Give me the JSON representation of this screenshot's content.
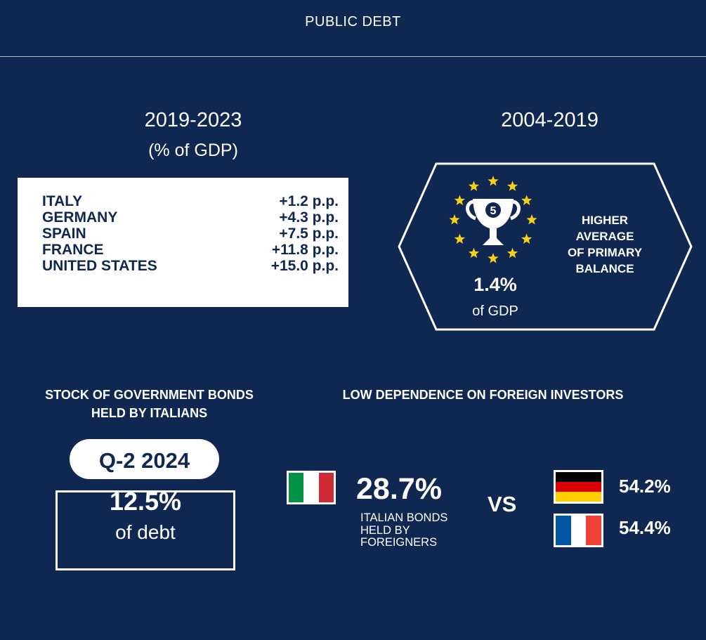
{
  "header": {
    "title": "PUBLIC DEBT"
  },
  "debt_change": {
    "period": "2019-2023",
    "unit": "(% of GDP)",
    "rows": [
      {
        "country": "ITALY",
        "value": "+1.2 p.p."
      },
      {
        "country": "GERMANY",
        "value": "+4.3 p.p."
      },
      {
        "country": "SPAIN",
        "value": "+7.5 p.p."
      },
      {
        "country": "FRANCE",
        "value": "+11.8 p.p."
      },
      {
        "country": "UNITED STATES",
        "value": "+15.0 p.p."
      }
    ]
  },
  "primary_balance": {
    "period": "2004-2019",
    "trophy_rank": "5",
    "value": "1.4%",
    "unit": "of GDP",
    "label_lines": [
      "HIGHER",
      "AVERAGE",
      "OF PRIMARY",
      "BALANCE"
    ],
    "icon": "trophy-with-eu-stars-icon"
  },
  "bond_stock": {
    "title_lines": [
      "STOCK OF GOVERNMENT BONDS",
      "HELD BY ITALIANS"
    ],
    "quarter": "Q-2 2024",
    "value": "12.5%",
    "unit": "of debt"
  },
  "foreign_investors": {
    "title": "LOW DEPENDENCE ON FOREIGN INVESTORS",
    "italy": {
      "flag": "italy-flag-icon",
      "value": "28.7%",
      "label_lines": [
        "ITALIAN BONDS",
        "HELD BY",
        "FOREIGNERS"
      ]
    },
    "vs": "VS",
    "germany": {
      "flag": "germany-flag-icon",
      "value": "54.2%"
    },
    "france": {
      "flag": "france-flag-icon",
      "value": "54.4%"
    }
  },
  "colors": {
    "background": "#0f2751",
    "text": "#ffffff",
    "star": "#f7d117",
    "italy": [
      "#009246",
      "#ffffff",
      "#ce2b37"
    ],
    "germany": [
      "#000000",
      "#dd0000",
      "#ffce00"
    ],
    "france": [
      "#0055a4",
      "#ffffff",
      "#ef4135"
    ]
  }
}
